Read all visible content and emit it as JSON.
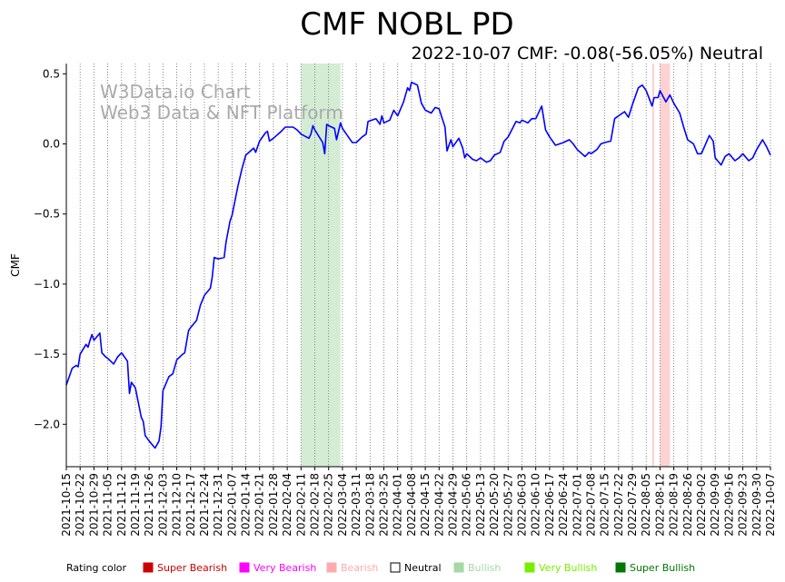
{
  "chart_data": {
    "type": "line",
    "title": "CMF NOBL PD",
    "subtitle": "2022-10-07 CMF: -0.08(-56.05%) Neutral",
    "ylabel": "CMF",
    "xlabel": "",
    "ylim": [
      -2.3,
      0.57
    ],
    "xlim": [
      "2021-10-15",
      "2022-10-07"
    ],
    "grid": "vertical dotted",
    "yticks": [
      0.5,
      0.0,
      -0.5,
      -1.0,
      -1.5,
      -2.0
    ],
    "ytick_labels": [
      "0.5",
      "0.0",
      "−0.5",
      "−1.0",
      "−1.5",
      "−2.0"
    ],
    "xtick_labels": [
      "2021-10-15",
      "2021-10-22",
      "2021-10-29",
      "2021-11-05",
      "2021-11-12",
      "2021-11-19",
      "2021-11-26",
      "2021-12-03",
      "2021-12-10",
      "2021-12-17",
      "2021-12-24",
      "2021-12-31",
      "2022-01-07",
      "2022-01-14",
      "2022-01-21",
      "2022-01-28",
      "2022-02-04",
      "2022-02-11",
      "2022-02-18",
      "2022-02-25",
      "2022-03-04",
      "2022-03-11",
      "2022-03-18",
      "2022-03-25",
      "2022-04-01",
      "2022-04-08",
      "2022-04-15",
      "2022-04-22",
      "2022-04-29",
      "2022-05-06",
      "2022-05-13",
      "2022-05-20",
      "2022-05-27",
      "2022-06-03",
      "2022-06-10",
      "2022-06-17",
      "2022-06-24",
      "2022-07-01",
      "2022-07-08",
      "2022-07-15",
      "2022-07-22",
      "2022-07-29",
      "2022-08-05",
      "2022-08-12",
      "2022-08-19",
      "2022-08-26",
      "2022-09-02",
      "2022-09-09",
      "2022-09-16",
      "2022-09-23",
      "2022-09-30",
      "2022-10-07"
    ],
    "watermark": [
      "W3Data.io Chart",
      "Web3 Data & NFT Platform"
    ],
    "shaded_regions": [
      {
        "start": "2022-02-11",
        "end": "2022-03-03",
        "color": "#d4ecd4"
      },
      {
        "start": "2022-08-08",
        "end": "2022-08-09",
        "color": "#ffd2d2"
      },
      {
        "start": "2022-08-12",
        "end": "2022-08-17",
        "color": "#ffd2d2"
      }
    ],
    "series": [
      {
        "color": "#0000ff",
        "points": [
          [
            "2021-10-15",
            -1.72
          ],
          [
            "2021-10-18",
            -1.6
          ],
          [
            "2021-10-20",
            -1.58
          ],
          [
            "2021-10-21",
            -1.59
          ],
          [
            "2021-10-22",
            -1.5
          ],
          [
            "2021-10-25",
            -1.43
          ],
          [
            "2021-10-26",
            -1.45
          ],
          [
            "2021-10-27",
            -1.4
          ],
          [
            "2021-10-28",
            -1.36
          ],
          [
            "2021-10-29",
            -1.4
          ],
          [
            "2021-11-01",
            -1.35
          ],
          [
            "2021-11-02",
            -1.49
          ],
          [
            "2021-11-04",
            -1.52
          ],
          [
            "2021-11-05",
            -1.53
          ],
          [
            "2021-11-08",
            -1.57
          ],
          [
            "2021-11-10",
            -1.52
          ],
          [
            "2021-11-12",
            -1.49
          ],
          [
            "2021-11-15",
            -1.55
          ],
          [
            "2021-11-16",
            -1.78
          ],
          [
            "2021-11-17",
            -1.7
          ],
          [
            "2021-11-19",
            -1.74
          ],
          [
            "2021-11-22",
            -1.95
          ],
          [
            "2021-11-23",
            -1.98
          ],
          [
            "2021-11-24",
            -2.08
          ],
          [
            "2021-11-26",
            -2.12
          ],
          [
            "2021-11-29",
            -2.17
          ],
          [
            "2021-12-01",
            -2.12
          ],
          [
            "2021-12-02",
            -2.02
          ],
          [
            "2021-12-03",
            -1.76
          ],
          [
            "2021-12-06",
            -1.66
          ],
          [
            "2021-12-08",
            -1.64
          ],
          [
            "2021-12-10",
            -1.54
          ],
          [
            "2021-12-13",
            -1.5
          ],
          [
            "2021-12-14",
            -1.49
          ],
          [
            "2021-12-16",
            -1.33
          ],
          [
            "2021-12-17",
            -1.31
          ],
          [
            "2021-12-20",
            -1.26
          ],
          [
            "2021-12-22",
            -1.15
          ],
          [
            "2021-12-24",
            -1.08
          ],
          [
            "2021-12-27",
            -1.03
          ],
          [
            "2021-12-28",
            -0.95
          ],
          [
            "2021-12-29",
            -0.81
          ],
          [
            "2021-12-31",
            -0.82
          ],
          [
            "2022-01-03",
            -0.81
          ],
          [
            "2022-01-04",
            -0.7
          ],
          [
            "2022-01-06",
            -0.55
          ],
          [
            "2022-01-07",
            -0.51
          ],
          [
            "2022-01-10",
            -0.3
          ],
          [
            "2022-01-12",
            -0.18
          ],
          [
            "2022-01-14",
            -0.08
          ],
          [
            "2022-01-18",
            -0.03
          ],
          [
            "2022-01-19",
            -0.06
          ],
          [
            "2022-01-21",
            0.02
          ],
          [
            "2022-01-24",
            0.08
          ],
          [
            "2022-01-25",
            0.09
          ],
          [
            "2022-01-26",
            0.02
          ],
          [
            "2022-01-28",
            0.04
          ],
          [
            "2022-02-01",
            0.09
          ],
          [
            "2022-02-03",
            0.12
          ],
          [
            "2022-02-07",
            0.12
          ],
          [
            "2022-02-09",
            0.1
          ],
          [
            "2022-02-11",
            0.07
          ],
          [
            "2022-02-15",
            0.04
          ],
          [
            "2022-02-16",
            0.07
          ],
          [
            "2022-02-17",
            0.13
          ],
          [
            "2022-02-18",
            0.1
          ],
          [
            "2022-02-22",
            0.01
          ],
          [
            "2022-02-23",
            -0.07
          ],
          [
            "2022-02-24",
            0.14
          ],
          [
            "2022-02-25",
            0.13
          ],
          [
            "2022-02-28",
            0.11
          ],
          [
            "2022-03-01",
            0.03
          ],
          [
            "2022-03-03",
            0.15
          ],
          [
            "2022-03-04",
            0.11
          ],
          [
            "2022-03-08",
            0.03
          ],
          [
            "2022-03-09",
            0.01
          ],
          [
            "2022-03-11",
            0.01
          ],
          [
            "2022-03-14",
            0.05
          ],
          [
            "2022-03-16",
            0.07
          ],
          [
            "2022-03-17",
            0.16
          ],
          [
            "2022-03-21",
            0.18
          ],
          [
            "2022-03-23",
            0.14
          ],
          [
            "2022-03-24",
            0.2
          ],
          [
            "2022-03-25",
            0.15
          ],
          [
            "2022-03-28",
            0.17
          ],
          [
            "2022-03-30",
            0.24
          ],
          [
            "2022-04-01",
            0.2
          ],
          [
            "2022-04-04",
            0.3
          ],
          [
            "2022-04-06",
            0.4
          ],
          [
            "2022-04-07",
            0.38
          ],
          [
            "2022-04-08",
            0.44
          ],
          [
            "2022-04-11",
            0.42
          ],
          [
            "2022-04-13",
            0.29
          ],
          [
            "2022-04-15",
            0.24
          ],
          [
            "2022-04-18",
            0.22
          ],
          [
            "2022-04-20",
            0.26
          ],
          [
            "2022-04-22",
            0.25
          ],
          [
            "2022-04-25",
            0.12
          ],
          [
            "2022-04-26",
            -0.05
          ],
          [
            "2022-04-28",
            0.03
          ],
          [
            "2022-04-29",
            -0.02
          ],
          [
            "2022-05-02",
            0.04
          ],
          [
            "2022-05-04",
            -0.03
          ],
          [
            "2022-05-05",
            -0.1
          ],
          [
            "2022-05-06",
            -0.07
          ],
          [
            "2022-05-09",
            -0.11
          ],
          [
            "2022-05-11",
            -0.12
          ],
          [
            "2022-05-13",
            -0.1
          ],
          [
            "2022-05-16",
            -0.13
          ],
          [
            "2022-05-18",
            -0.12
          ],
          [
            "2022-05-20",
            -0.08
          ],
          [
            "2022-05-23",
            -0.06
          ],
          [
            "2022-05-25",
            0.02
          ],
          [
            "2022-05-27",
            0.05
          ],
          [
            "2022-05-31",
            0.16
          ],
          [
            "2022-06-02",
            0.15
          ],
          [
            "2022-06-03",
            0.17
          ],
          [
            "2022-06-06",
            0.15
          ],
          [
            "2022-06-08",
            0.18
          ],
          [
            "2022-06-10",
            0.18
          ],
          [
            "2022-06-13",
            0.27
          ],
          [
            "2022-06-15",
            0.1
          ],
          [
            "2022-06-17",
            0.05
          ],
          [
            "2022-06-20",
            -0.01
          ],
          [
            "2022-06-22",
            0.0
          ],
          [
            "2022-06-24",
            0.01
          ],
          [
            "2022-06-27",
            0.03
          ],
          [
            "2022-06-29",
            0.0
          ],
          [
            "2022-07-01",
            -0.04
          ],
          [
            "2022-07-05",
            -0.09
          ],
          [
            "2022-07-07",
            -0.06
          ],
          [
            "2022-07-08",
            -0.07
          ],
          [
            "2022-07-11",
            -0.04
          ],
          [
            "2022-07-13",
            0.0
          ],
          [
            "2022-07-15",
            0.01
          ],
          [
            "2022-07-18",
            0.02
          ],
          [
            "2022-07-20",
            0.18
          ],
          [
            "2022-07-22",
            0.2
          ],
          [
            "2022-07-25",
            0.23
          ],
          [
            "2022-07-27",
            0.19
          ],
          [
            "2022-07-29",
            0.28
          ],
          [
            "2022-08-01",
            0.4
          ],
          [
            "2022-08-03",
            0.42
          ],
          [
            "2022-08-05",
            0.38
          ],
          [
            "2022-08-08",
            0.27
          ],
          [
            "2022-08-09",
            0.33
          ],
          [
            "2022-08-11",
            0.33
          ],
          [
            "2022-08-12",
            0.38
          ],
          [
            "2022-08-15",
            0.3
          ],
          [
            "2022-08-17",
            0.35
          ],
          [
            "2022-08-19",
            0.29
          ],
          [
            "2022-08-22",
            0.22
          ],
          [
            "2022-08-24",
            0.12
          ],
          [
            "2022-08-26",
            0.03
          ],
          [
            "2022-08-29",
            0.0
          ],
          [
            "2022-08-31",
            -0.07
          ],
          [
            "2022-09-02",
            -0.07
          ],
          [
            "2022-09-06",
            0.06
          ],
          [
            "2022-09-08",
            0.02
          ],
          [
            "2022-09-09",
            -0.1
          ],
          [
            "2022-09-12",
            -0.15
          ],
          [
            "2022-09-14",
            -0.09
          ],
          [
            "2022-09-16",
            -0.07
          ],
          [
            "2022-09-19",
            -0.12
          ],
          [
            "2022-09-21",
            -0.1
          ],
          [
            "2022-09-23",
            -0.07
          ],
          [
            "2022-09-26",
            -0.12
          ],
          [
            "2022-09-28",
            -0.1
          ],
          [
            "2022-09-30",
            -0.04
          ],
          [
            "2022-10-03",
            0.03
          ],
          [
            "2022-10-05",
            -0.02
          ],
          [
            "2022-10-07",
            -0.08
          ]
        ]
      }
    ]
  },
  "legend": {
    "heading": "Rating color",
    "items": [
      {
        "label": "Super Bearish",
        "color": "#cc0000"
      },
      {
        "label": "Very Bearish",
        "color": "#ff00ff"
      },
      {
        "label": "Bearish",
        "color": "#ffaaaa"
      },
      {
        "label": "Neutral",
        "color": "#000000",
        "hollow": true
      },
      {
        "label": "Bullish",
        "color": "#a6d8a6"
      },
      {
        "label": "Very Bullish",
        "color": "#77ee00"
      },
      {
        "label": "Super Bullish",
        "color": "#007700"
      }
    ]
  }
}
